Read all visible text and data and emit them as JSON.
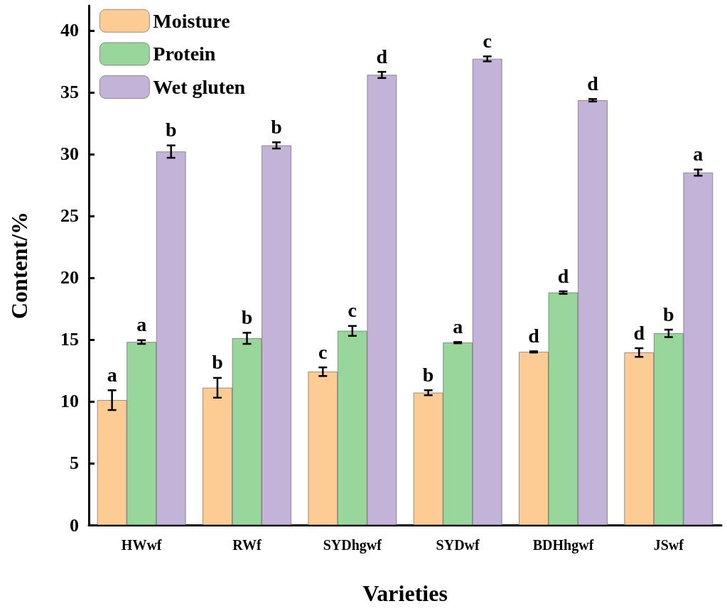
{
  "chart_data": {
    "type": "bar",
    "xlabel": "Varieties",
    "ylabel": "Content/%",
    "categories": [
      "HWwf",
      "RWf",
      "SYDhgwf",
      "SYDwf",
      "BDHhgwf",
      "JSwf"
    ],
    "series": [
      {
        "name": "Moisture",
        "color": "#fdcb94",
        "values": [
          10.1,
          11.1,
          12.4,
          10.7,
          14.0,
          13.95
        ],
        "errors": [
          0.8,
          0.8,
          0.35,
          0.2,
          0.05,
          0.35
        ],
        "value_labels": [
          "a",
          "b",
          "c",
          "b",
          "d",
          "d"
        ]
      },
      {
        "name": "Protein",
        "color": "#98d69c",
        "values": [
          14.8,
          15.1,
          15.7,
          14.75,
          18.8,
          15.5
        ],
        "errors": [
          0.15,
          0.45,
          0.4,
          0.05,
          0.1,
          0.3
        ],
        "value_labels": [
          "a",
          "b",
          "c",
          "a",
          "d",
          "b"
        ]
      },
      {
        "name": "Wet gluten",
        "color": "#c3b3d8",
        "values": [
          30.2,
          30.7,
          36.4,
          37.7,
          34.35,
          28.5
        ],
        "errors": [
          0.5,
          0.25,
          0.25,
          0.2,
          0.1,
          0.25
        ],
        "value_labels": [
          "b",
          "b",
          "d",
          "c",
          "d",
          "a"
        ]
      }
    ],
    "ylim": [
      0,
      42
    ],
    "yticks": [
      0,
      5,
      10,
      15,
      20,
      25,
      30,
      35,
      40
    ],
    "grid": false,
    "legend": "top left"
  }
}
